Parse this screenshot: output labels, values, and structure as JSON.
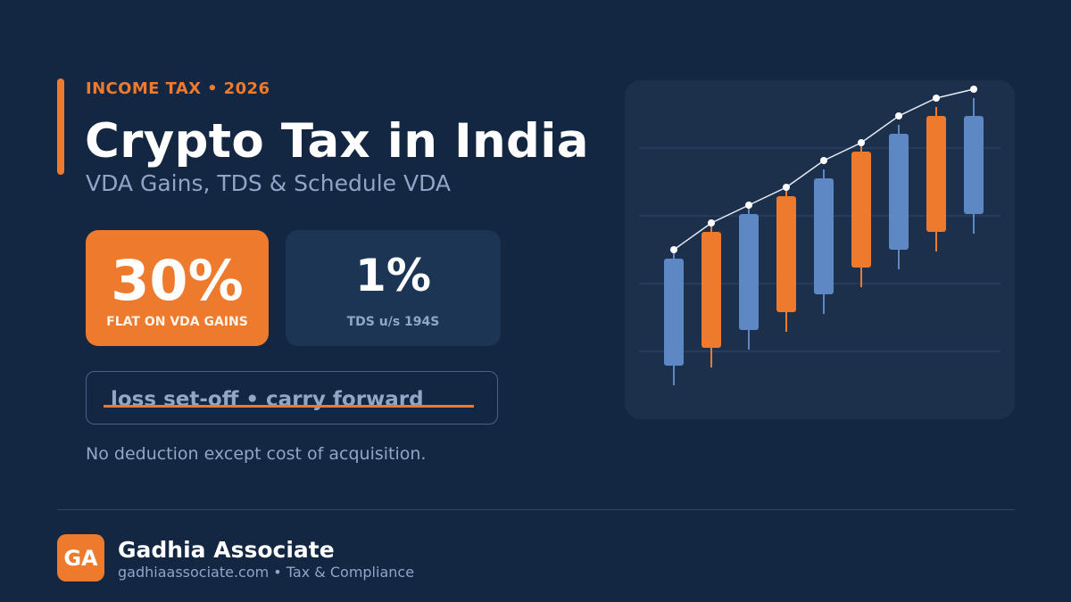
{
  "header": {
    "eyebrow": "INCOME TAX  •  2026",
    "title": "Crypto Tax in India",
    "subtitle": "VDA Gains, TDS & Schedule VDA"
  },
  "stats": {
    "primary": {
      "value": "30%",
      "label": "FLAT ON VDA GAINS"
    },
    "secondary": {
      "value": "1%",
      "label": "TDS u/s 194S"
    }
  },
  "loss": {
    "text": "loss set-off  •  carry forward"
  },
  "note": "No deduction except cost of acquisition.",
  "brand": {
    "logo": "GA",
    "name": "Gadhia Associate",
    "sub": "gadhiaassociate.com  •  Tax & Compliance"
  },
  "colors": {
    "background": "#132642",
    "accent": "#ED7A2D",
    "blue_candle": "#5D88C4",
    "orange_candle": "#ED7A2D",
    "trend_line": "#E6EDF7"
  },
  "chart_data": {
    "type": "candlestick",
    "candles": [
      {
        "open": 1.0,
        "close": 4.0,
        "low": 0.45,
        "high": 4.25,
        "color": "blue"
      },
      {
        "open": 1.5,
        "close": 4.75,
        "low": 0.95,
        "high": 5.0,
        "color": "orange"
      },
      {
        "open": 2.0,
        "close": 5.25,
        "low": 1.45,
        "high": 5.5,
        "color": "blue"
      },
      {
        "open": 2.5,
        "close": 5.75,
        "low": 1.95,
        "high": 6.0,
        "color": "orange"
      },
      {
        "open": 3.0,
        "close": 6.25,
        "low": 2.45,
        "high": 6.5,
        "color": "blue"
      },
      {
        "open": 3.75,
        "close": 7.0,
        "low": 3.2,
        "high": 7.25,
        "color": "orange"
      },
      {
        "open": 4.25,
        "close": 7.5,
        "low": 3.7,
        "high": 7.75,
        "color": "blue"
      },
      {
        "open": 4.75,
        "close": 8.0,
        "low": 4.2,
        "high": 8.25,
        "color": "orange"
      },
      {
        "open": 5.25,
        "close": 8.0,
        "low": 4.7,
        "high": 8.5,
        "color": "blue"
      }
    ],
    "trend": [
      4.25,
      5.0,
      5.5,
      6.0,
      6.75,
      7.25,
      8.0,
      8.5,
      8.75
    ],
    "grid": true
  }
}
